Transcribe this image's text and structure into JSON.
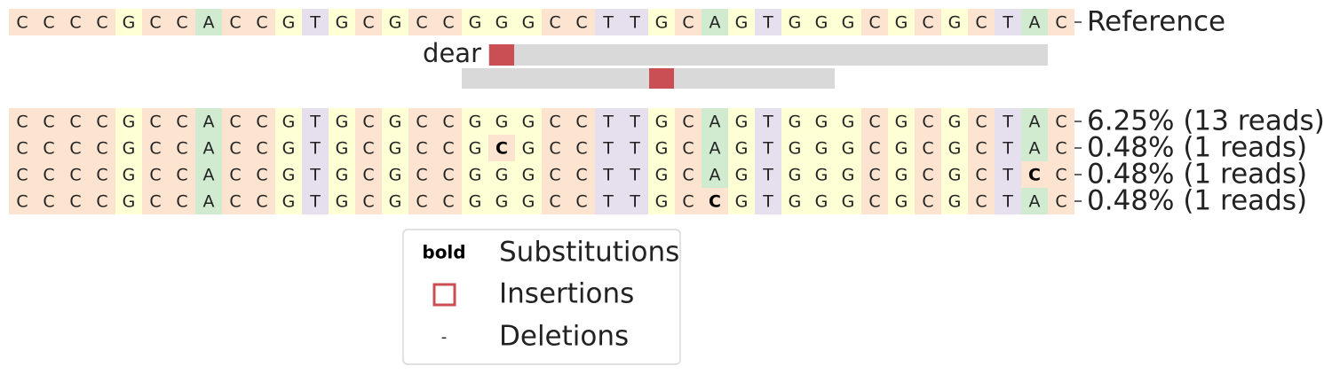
{
  "chart_data": {
    "type": "table",
    "title": "",
    "reference": {
      "label": "Reference",
      "sequence": "CCCCGCCACCGTGCGCCGGGCCTTGCAGTGGGCGCGCTAC"
    },
    "guide": {
      "label": "dear",
      "start_col": 18,
      "end_col": 39,
      "highlight_col": 18
    },
    "amplicon_bar": {
      "start_col": 17,
      "end_col": 31,
      "highlight_col": 24
    },
    "alleles": [
      {
        "sequence": "CCCCGCCACCGTGCGCCGGGCCTTGCAGTGGGCGCGCTAC",
        "percent": 6.25,
        "reads": 13,
        "label": "6.25% (13 reads)",
        "substitutions": []
      },
      {
        "sequence": "CCCCGCCACCGTGCGCCGCGCCTTGCAGTGGGCGCGCTAC",
        "percent": 0.48,
        "reads": 1,
        "label": "0.48% (1 reads)",
        "substitutions": [
          18
        ]
      },
      {
        "sequence": "CCCCGCCACCGTGCGCCGGGCCTTGCAGTGGGCGCGCTCC",
        "percent": 0.48,
        "reads": 1,
        "label": "0.48% (1 reads)",
        "substitutions": [
          38
        ]
      },
      {
        "sequence": "CCCCGCCACCGTGCGCCGGGCCTTGCCGTGGGCGCGCTAC",
        "percent": 0.48,
        "reads": 1,
        "label": "0.48% (1 reads)",
        "substitutions": [
          26
        ]
      }
    ],
    "legend": {
      "placement": "bottom-left",
      "items": [
        {
          "symbol": "bold",
          "label": "Substitutions"
        },
        {
          "symbol": "box",
          "label": "Insertions"
        },
        {
          "symbol": "-",
          "label": "Deletions"
        }
      ]
    },
    "colors": {
      "C": "#fde4d0",
      "G": "#ffffd6",
      "A": "#d1ebd1",
      "T": "#e6e0ee",
      "insertion": "#c94f54",
      "guide_bar": "#d9d9d9",
      "text": "#222222"
    }
  }
}
